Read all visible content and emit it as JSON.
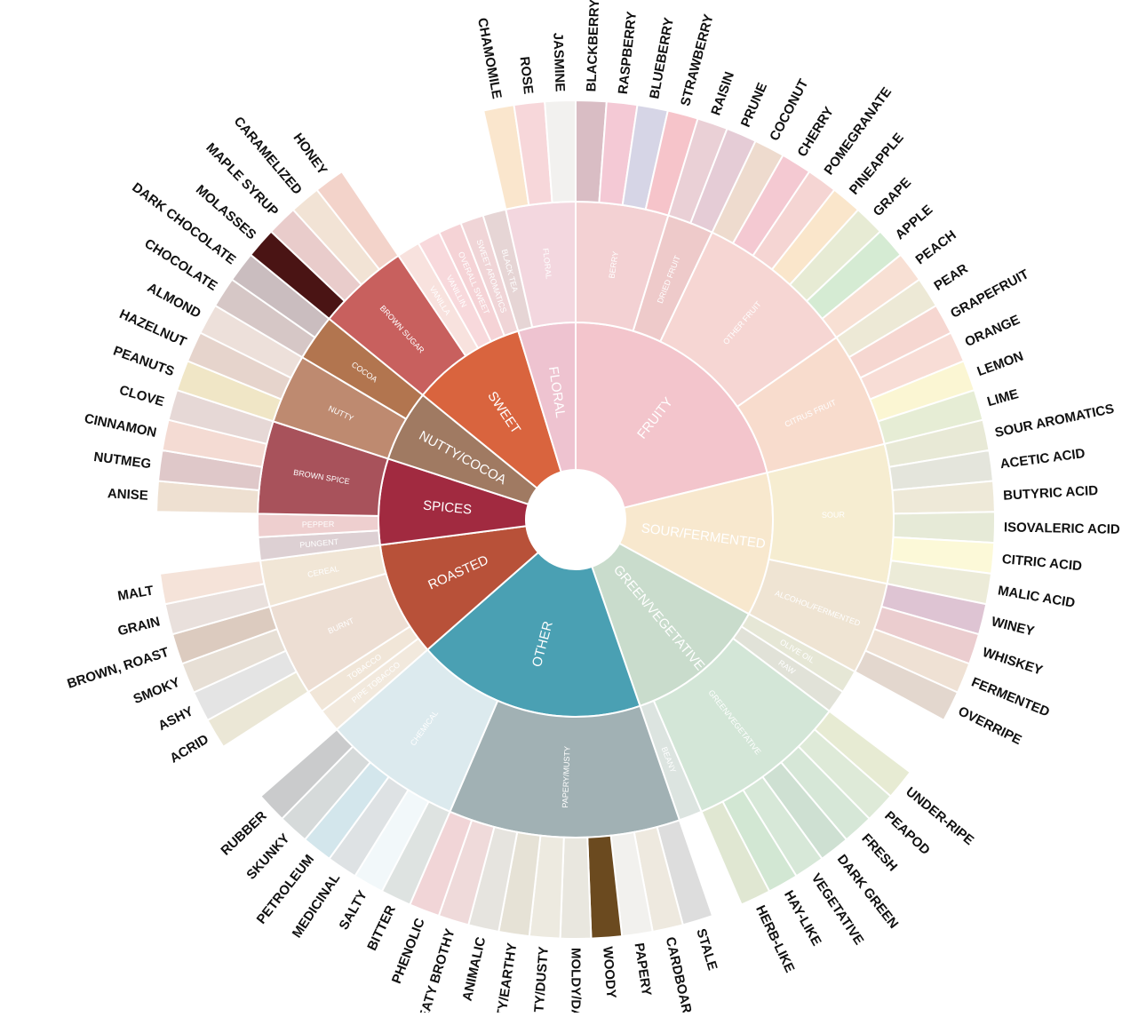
{
  "diagram": {
    "type": "sunburst",
    "categories": [
      {
        "name": "FRUITY",
        "color": "#F3C5CC",
        "subs": [
          {
            "name": "BERRY",
            "color": "#F3D1D3",
            "leaves": [
              {
                "name": "BLACKBERRY",
                "color": "#D9BDC4"
              },
              {
                "name": "RASPBERRY",
                "color": "#F4C9D5"
              },
              {
                "name": "BLUEBERRY",
                "color": "#D6D5E6"
              },
              {
                "name": "STRAWBERRY",
                "color": "#F6C4CA"
              }
            ]
          },
          {
            "name": "DRIED FRUIT",
            "color": "#EECACA",
            "leaves": [
              {
                "name": "RAISIN",
                "color": "#EAD0D6"
              },
              {
                "name": "PRUNE",
                "color": "#E5CCD6"
              }
            ]
          },
          {
            "name": "OTHER FRUIT",
            "color": "#F6D6D3",
            "leaves": [
              {
                "name": "COCONUT",
                "color": "#EEDBCE"
              },
              {
                "name": "CHERRY",
                "color": "#F4C9D2"
              },
              {
                "name": "POMEGRANATE",
                "color": "#F5D5D3"
              },
              {
                "name": "PINEAPPLE",
                "color": "#FAE6CB"
              },
              {
                "name": "GRAPE",
                "color": "#E7EBD4"
              },
              {
                "name": "APPLE",
                "color": "#D5EBD3"
              },
              {
                "name": "PEACH",
                "color": "#F8E0D4"
              }
            ]
          },
          {
            "name": "CITRUS FRUIT",
            "color": "#F8DCCD",
            "leaves": [
              {
                "name": "PEAR",
                "color": "#EDE9D6"
              },
              {
                "name": "GRAPEFRUIT",
                "color": "#F6D7D1"
              },
              {
                "name": "ORANGE",
                "color": "#F8DDD6"
              },
              {
                "name": "LEMON",
                "color": "#FBF6D3"
              },
              {
                "name": "LIME",
                "color": "#E6EDD5"
              }
            ]
          }
        ]
      },
      {
        "name": "SOUR/FERMENTED",
        "color": "#F8E8CE",
        "subs": [
          {
            "name": "SOUR",
            "color": "#F6EDD1",
            "leaves": [
              {
                "name": "SOUR AROMATICS",
                "color": "#E8E9D6"
              },
              {
                "name": "ACETIC ACID",
                "color": "#E4E5DC"
              },
              {
                "name": "BUTYRIC ACID",
                "color": "#EEE9D8"
              },
              {
                "name": "ISOVALERIC ACID",
                "color": "#E6EAD7"
              },
              {
                "name": "CITRIC ACID",
                "color": "#FCF9D8"
              },
              {
                "name": "MALIC ACID",
                "color": "#ECEBD8"
              }
            ]
          },
          {
            "name": "ALCOHOL/FERMENTED",
            "color": "#EFE4D3",
            "leaves": [
              {
                "name": "WINEY",
                "color": "#DEC4D3"
              },
              {
                "name": "WHISKEY",
                "color": "#EBCDCF"
              },
              {
                "name": "FERMENTED",
                "color": "#EFE1D4"
              },
              {
                "name": "OVERRIPE",
                "color": "#E3D7CE"
              }
            ]
          }
        ]
      },
      {
        "name": "GREEN/VEGETATIVE",
        "color": "#C9DCCC",
        "subs": [
          {
            "name": "OLIVE OIL",
            "color": "#E6E7D6",
            "leaves": []
          },
          {
            "name": "RAW",
            "color": "#E1E2D8",
            "leaves": []
          },
          {
            "name": "GREEN/VEGETATIVE",
            "color": "#D3E6D7",
            "leaves": [
              {
                "name": "UNDER-RIPE",
                "color": "#E7EBD3"
              },
              {
                "name": "PEAPOD",
                "color": "#DEEAD8"
              },
              {
                "name": "FRESH",
                "color": "#D6E7D7"
              },
              {
                "name": "DARK GREEN",
                "color": "#CEE0D2"
              },
              {
                "name": "VEGETATIVE",
                "color": "#D7E8D8"
              },
              {
                "name": "HAY-LIKE",
                "color": "#D2E7D3"
              },
              {
                "name": "HERB-LIKE",
                "color": "#E0E7D2"
              }
            ]
          },
          {
            "name": "BEANY",
            "color": "#DCE4E0",
            "leaves": []
          }
        ]
      },
      {
        "name": "OTHER",
        "color": "#4AA0B3",
        "subs": [
          {
            "name": "PAPERY/MUSTY",
            "color": "#A1B1B4",
            "leaves": [
              {
                "name": "STALE",
                "color": "#DDDDDD"
              },
              {
                "name": "CARDBOARD",
                "color": "#EEE9DF"
              },
              {
                "name": "PAPERY",
                "color": "#F2F1EE"
              },
              {
                "name": "WOODY",
                "color": "#6B4A1F"
              },
              {
                "name": "MOLDY/DAMP",
                "color": "#E9E7DF"
              },
              {
                "name": "MUSTY/DUSTY",
                "color": "#EDEAE0"
              },
              {
                "name": "MUSTY/EARTHY",
                "color": "#E6E2D6"
              },
              {
                "name": "ANIMALIC",
                "color": "#E6E4DF"
              },
              {
                "name": "MEATY BROTHY",
                "color": "#EFDADA"
              },
              {
                "name": "PHENOLIC",
                "color": "#F1D5D7"
              }
            ]
          },
          {
            "name": "CHEMICAL",
            "color": "#DCEAEE",
            "leaves": [
              {
                "name": "BITTER",
                "color": "#DEE3E1"
              },
              {
                "name": "SALTY",
                "color": "#F2F8FA"
              },
              {
                "name": "MEDICINAL",
                "color": "#DEE2E4"
              },
              {
                "name": "PETROLEUM",
                "color": "#D3E6EC"
              },
              {
                "name": "SKUNKY",
                "color": "#D6DADA"
              },
              {
                "name": "RUBBER",
                "color": "#CACBCC"
              }
            ]
          }
        ]
      },
      {
        "name": "ROASTED",
        "color": "#B85139",
        "subs": [
          {
            "name": "PIPE TOBACCO",
            "color": "#F2E9DD",
            "leaves": []
          },
          {
            "name": "TOBACCO",
            "color": "#F1E6D8",
            "leaves": []
          },
          {
            "name": "BURNT",
            "color": "#EDDED3",
            "leaves": [
              {
                "name": "ACRID",
                "color": "#EBE7D6"
              },
              {
                "name": "ASHY",
                "color": "#E4E4E4"
              },
              {
                "name": "SMOKY",
                "color": "#E7DFD5"
              },
              {
                "name": "BROWN, ROAST",
                "color": "#DCCBBF"
              }
            ]
          },
          {
            "name": "CEREAL",
            "color": "#F1E6D6",
            "leaves": [
              {
                "name": "GRAIN",
                "color": "#E9E0DC"
              },
              {
                "name": "MALT",
                "color": "#F5E3D9"
              }
            ]
          }
        ]
      },
      {
        "name": "SPICES",
        "color": "#A12A40",
        "subs": [
          {
            "name": "PUNGENT",
            "color": "#DDD0D3",
            "leaves": []
          },
          {
            "name": "PEPPER",
            "color": "#EECFCF",
            "leaves": []
          },
          {
            "name": "BROWN SPICE",
            "color": "#A8525B",
            "leaves": [
              {
                "name": "ANISE",
                "color": "#EEE0D1"
              },
              {
                "name": "NUTMEG",
                "color": "#DFC8C9"
              },
              {
                "name": "CINNAMON",
                "color": "#F4DBD3"
              },
              {
                "name": "CLOVE",
                "color": "#E6D8D6"
              }
            ]
          }
        ]
      },
      {
        "name": "NUTTY/COCOA",
        "color": "#A07A62",
        "subs": [
          {
            "name": "NUTTY",
            "color": "#BE8A70",
            "leaves": [
              {
                "name": "PEANUTS",
                "color": "#F0E6C6"
              },
              {
                "name": "HAZELNUT",
                "color": "#E6D4CC"
              },
              {
                "name": "ALMOND",
                "color": "#EDE0DA"
              }
            ]
          },
          {
            "name": "COCOA",
            "color": "#B2754F",
            "leaves": [
              {
                "name": "CHOCOLATE",
                "color": "#D6C7C6"
              },
              {
                "name": "DARK CHOCOLATE",
                "color": "#CABDBF"
              }
            ]
          }
        ]
      },
      {
        "name": "SWEET",
        "color": "#D9643E",
        "subs": [
          {
            "name": "BROWN SUGAR",
            "color": "#C8605E",
            "leaves": [
              {
                "name": "MOLASSES",
                "color": "#4A1414"
              },
              {
                "name": "MAPLE SYRUP",
                "color": "#E9CCCB"
              },
              {
                "name": "CARAMELIZED",
                "color": "#F2E3D5"
              },
              {
                "name": "HONEY",
                "color": "#F3D3CA"
              }
            ]
          },
          {
            "name": "VANILLA",
            "color": "#F8E2DE",
            "leaves": []
          },
          {
            "name": "VANILLIN",
            "color": "#F8D9DC",
            "leaves": []
          },
          {
            "name": "OVERALL SWEET",
            "color": "#F5D3D6",
            "leaves": []
          },
          {
            "name": "SWEET AROMATICS",
            "color": "#F0D5D7",
            "leaves": []
          }
        ]
      },
      {
        "name": "FLORAL",
        "color": "#EEC3D0",
        "subs": [
          {
            "name": "BLACK TEA",
            "color": "#E6D5D5",
            "leaves": []
          },
          {
            "name": "FLORAL",
            "color": "#F3D7DF",
            "leaves": [
              {
                "name": "CHAMOMILE",
                "color": "#FAE6CD"
              },
              {
                "name": "ROSE",
                "color": "#F7D7DA"
              },
              {
                "name": "JASMINE",
                "color": "#F2F1EF"
              }
            ]
          }
        ]
      }
    ]
  }
}
